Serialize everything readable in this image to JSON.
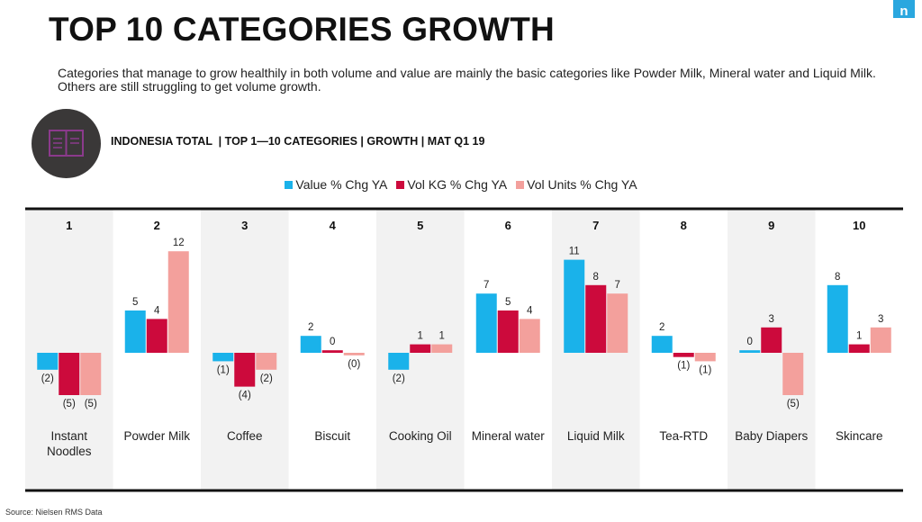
{
  "title": "TOP 10 CATEGORIES GROWTH",
  "subtitle": "Categories that manage to grow healthily in both volume and value are mainly the basic categories like Powder Milk, Mineral water and Liquid Milk. Others are still struggling to get volume growth.",
  "filter_text": "INDONESIA TOTAL  | TOP 1—10 CATEGORIES | GROWTH | MAT Q1 19",
  "logo_text": "n",
  "source": "Source: Nielsen RMS Data",
  "colors": {
    "value": "#1ab2ea",
    "vol_kg": "#cc0a3c",
    "vol_units": "#f3a09c",
    "band": "#f2f2f2",
    "badge": "#3a3838",
    "badge_accent": "#8b3a8c"
  },
  "icons": {
    "badge": "book-icon"
  },
  "chart_data": {
    "type": "bar",
    "ranks": [
      "1",
      "2",
      "3",
      "4",
      "5",
      "6",
      "7",
      "8",
      "9",
      "10"
    ],
    "categories": [
      [
        "Instant",
        "Noodles"
      ],
      [
        "Powder Milk"
      ],
      [
        "Coffee"
      ],
      [
        "Biscuit"
      ],
      [
        "Cooking Oil"
      ],
      [
        "Mineral water"
      ],
      [
        "Liquid Milk"
      ],
      [
        "Tea-RTD"
      ],
      [
        "Baby Diapers"
      ],
      [
        "Skincare"
      ]
    ],
    "legend_position": "top-center",
    "grid": false,
    "ylim": [
      -6,
      13
    ],
    "series": [
      {
        "name": "Value % Chg YA",
        "color": "#1ab2ea",
        "values": [
          -2,
          5,
          -1,
          2,
          -2,
          7,
          11,
          2,
          0.3,
          8
        ],
        "labels": [
          "(2)",
          "5",
          "(1)",
          "2",
          "(2)",
          "7",
          "11",
          "2",
          "0",
          "8"
        ]
      },
      {
        "name": "Vol KG % Chg YA",
        "color": "#cc0a3c",
        "values": [
          -5,
          4,
          -4,
          0.3,
          1,
          5,
          8,
          -0.5,
          3,
          1
        ],
        "labels": [
          "(5)",
          "4",
          "(4)",
          "0",
          "1",
          "5",
          "8",
          "(1)",
          "3",
          "1"
        ]
      },
      {
        "name": "Vol Units % Chg YA",
        "color": "#f3a09c",
        "values": [
          -5,
          12,
          -2,
          -0.3,
          1,
          4,
          7,
          -1,
          -5,
          3
        ],
        "labels": [
          "(5)",
          "12",
          "(2)",
          "(0)",
          "1",
          "4",
          "7",
          "(1)",
          "(5)",
          "3"
        ]
      }
    ]
  }
}
